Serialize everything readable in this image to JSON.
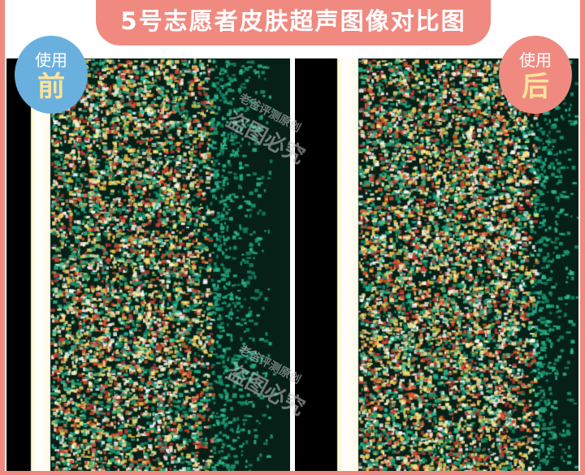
{
  "title": "5号志愿者皮肤超声图像对比图",
  "before_badge": {
    "line1": "使用",
    "line2": "前",
    "color": "#6ab0de"
  },
  "after_badge": {
    "line1": "使用",
    "line2": "后",
    "color": "#f08a80"
  },
  "watermark": {
    "line1": "老爸评测原创",
    "line2": "盗图必究"
  },
  "frame_color": "#f08a80"
}
